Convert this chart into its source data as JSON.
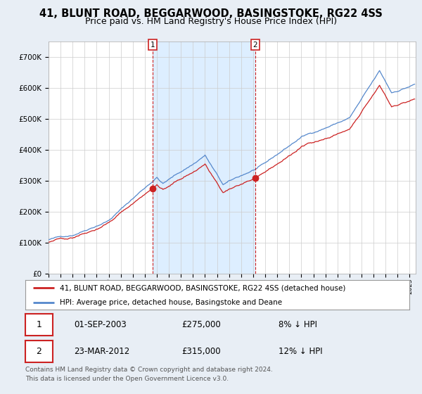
{
  "title": "41, BLUNT ROAD, BEGGARWOOD, BASINGSTOKE, RG22 4SS",
  "subtitle": "Price paid vs. HM Land Registry's House Price Index (HPI)",
  "title_fontsize": 10.5,
  "subtitle_fontsize": 9,
  "hpi_color": "#5588cc",
  "price_color": "#cc2222",
  "shade_color": "#ddeeff",
  "background_color": "#e8eef5",
  "plot_bg_color": "#ffffff",
  "grid_color": "#cccccc",
  "legend_label_hpi": "HPI: Average price, detached house, Basingstoke and Deane",
  "legend_label_price": "41, BLUNT ROAD, BEGGARWOOD, BASINGSTOKE, RG22 4SS (detached house)",
  "transaction1_date": "01-SEP-2003",
  "transaction1_price": 275000,
  "transaction1_pct": "8% ↓ HPI",
  "transaction2_date": "23-MAR-2012",
  "transaction2_price": 315000,
  "transaction2_pct": "12% ↓ HPI",
  "footer": "Contains HM Land Registry data © Crown copyright and database right 2024.\nThis data is licensed under the Open Government Licence v3.0.",
  "ylim": [
    0,
    750000
  ],
  "yticks": [
    0,
    100000,
    200000,
    300000,
    400000,
    500000,
    600000,
    700000
  ],
  "ytick_labels": [
    "£0",
    "£100K",
    "£200K",
    "£300K",
    "£400K",
    "£500K",
    "£600K",
    "£700K"
  ]
}
